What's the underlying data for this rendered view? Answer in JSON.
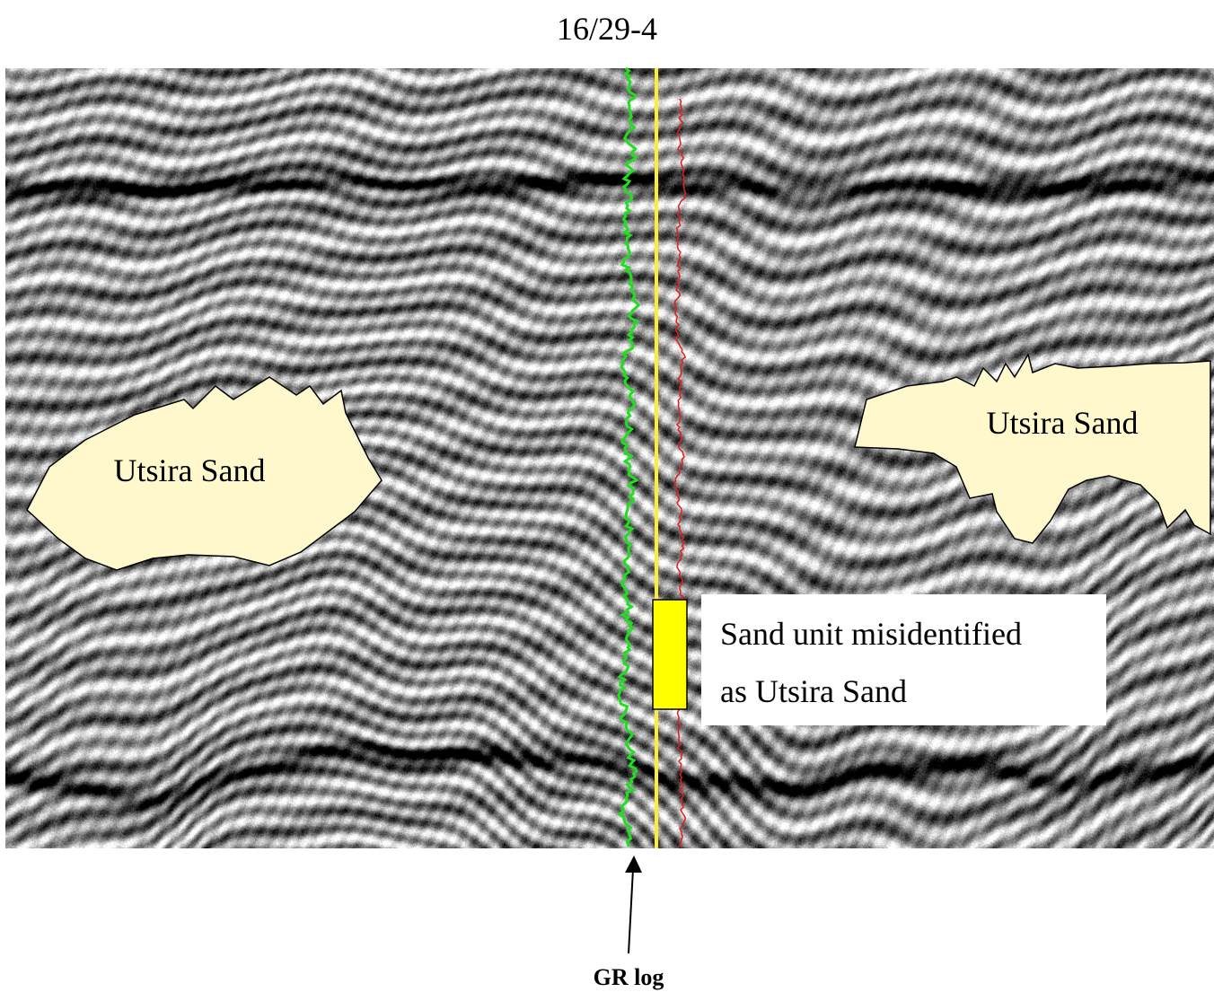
{
  "title": "16/29-4",
  "annotations": {
    "left_body_label": "Utsira Sand",
    "right_body_label": "Utsira Sand",
    "misidentified_line1": "Sand unit misidentified",
    "misidentified_line2": "as Utsira Sand",
    "gr_log_label": "GR log"
  },
  "colors": {
    "sand_fill": "#fff8cc",
    "well_path": "#ffeb3b",
    "gr_log": "#22dd22",
    "second_log": "#dd2020",
    "sand_unit_marker": "#ffff00"
  }
}
